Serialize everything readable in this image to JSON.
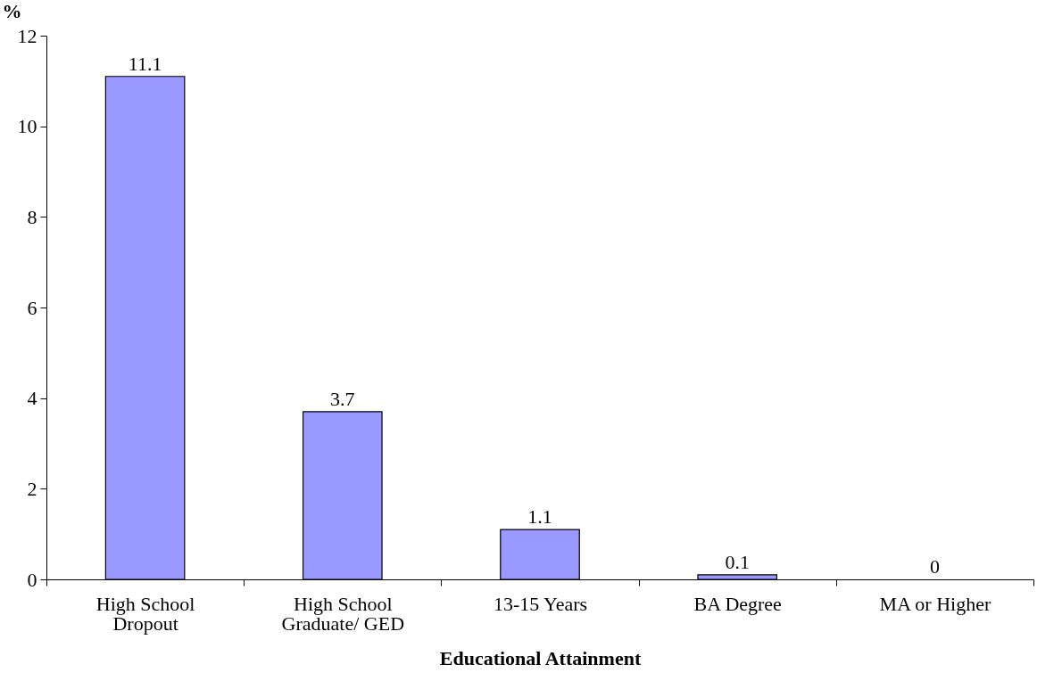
{
  "chart_data": {
    "type": "bar",
    "categories": [
      "High  School\nDropout",
      "High School\nGraduate/ GED",
      "13-15 Years",
      "BA Degree",
      "MA or Higher"
    ],
    "values": [
      11.1,
      3.7,
      1.1,
      0.1,
      0
    ],
    "color": "#9999ff",
    "ylim": [
      0,
      12
    ],
    "yticks": [
      0,
      2,
      4,
      6,
      8,
      10,
      12
    ],
    "xlabel": "Educational Attainment",
    "ylabel": "%",
    "data_labels": true,
    "grid": false
  }
}
